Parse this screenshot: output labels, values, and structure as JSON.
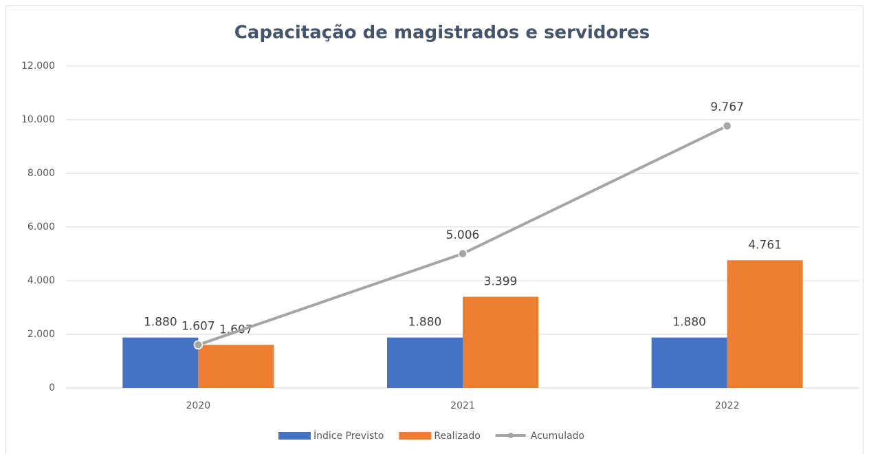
{
  "chart_data": {
    "type": "bar",
    "title": "Capacitação de magistrados e servidores",
    "categories": [
      "2020",
      "2021",
      "2022"
    ],
    "series": [
      {
        "name": "Índice Previsto",
        "type": "bar",
        "color": "#4472c4",
        "values": [
          1880,
          1880,
          1880
        ],
        "value_labels": [
          "1.880",
          "1.880",
          "1.880"
        ]
      },
      {
        "name": "Realizado",
        "type": "bar",
        "color": "#ed7d31",
        "values": [
          1607,
          3399,
          4761
        ],
        "value_labels": [
          "1.607",
          "3.399",
          "4.761"
        ]
      },
      {
        "name": "Acumulado",
        "type": "line",
        "color": "#a5a5a5",
        "values": [
          1607,
          5006,
          9767
        ],
        "value_labels": [
          "1.607",
          "5.006",
          "9.767"
        ]
      }
    ],
    "ylim": [
      0,
      12000
    ],
    "yticks": [
      0,
      {
        "value": 2000,
        "label": "2.000"
      },
      {
        "value": 4000,
        "label": "4.000"
      },
      {
        "value": 6000,
        "label": "6.000"
      },
      {
        "value": 8000,
        "label": "8.000"
      },
      {
        "value": 10000,
        "label": "10.000"
      },
      {
        "value": 12000,
        "label": "12.000"
      }
    ],
    "grid": true,
    "legend": "bottom"
  }
}
